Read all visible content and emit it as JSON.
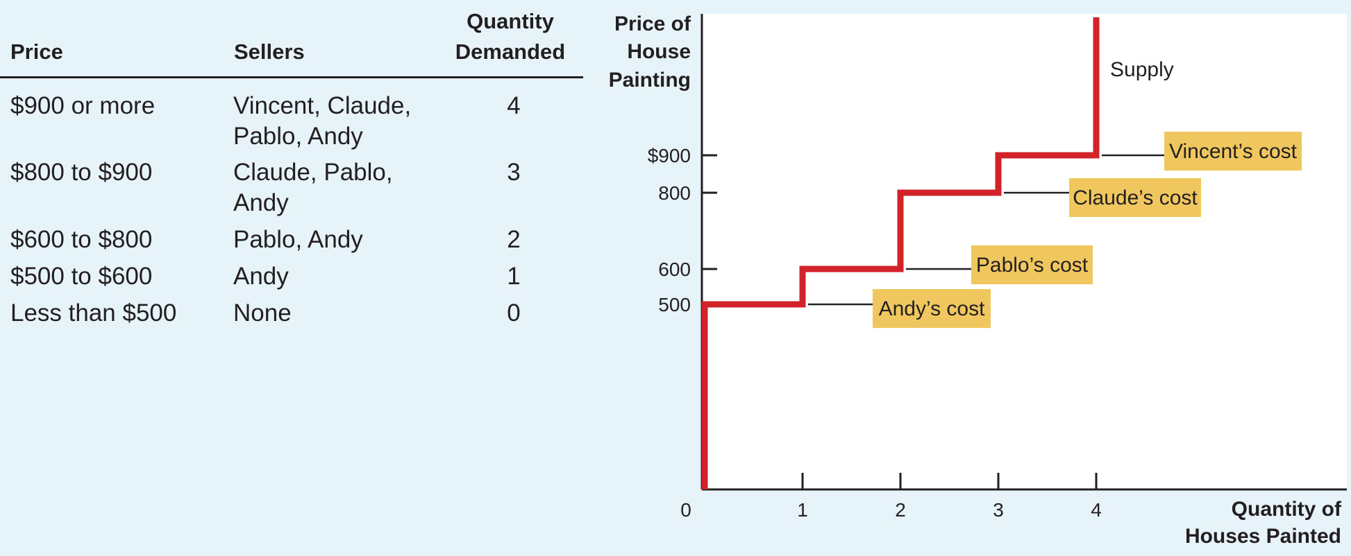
{
  "table": {
    "headers": {
      "price": "Price",
      "sellers": "Sellers",
      "quantity_line1": "Quantity",
      "quantity_line2": "Demanded"
    },
    "rows": [
      {
        "price": "$900 or more",
        "sellers": "Vincent, Claude, Pablo, Andy",
        "quantity": "4"
      },
      {
        "price": "$800 to $900",
        "sellers": "Claude, Pablo, Andy",
        "quantity": "3"
      },
      {
        "price": "$600 to $800",
        "sellers": "Pablo, Andy",
        "quantity": "2"
      },
      {
        "price": "$500 to $600",
        "sellers": "Andy",
        "quantity": "1"
      },
      {
        "price": "Less than $500",
        "sellers": "None",
        "quantity": "0"
      }
    ]
  },
  "chart_data": {
    "type": "line",
    "title": "",
    "ylabel": [
      "Price of",
      "House",
      "Painting"
    ],
    "xlabel": [
      "Quantity of",
      "Houses Painted"
    ],
    "x_ticks": [
      "0",
      "1",
      "2",
      "3",
      "4"
    ],
    "y_ticks": [
      {
        "value": 500,
        "label": "500"
      },
      {
        "value": 600,
        "label": "600"
      },
      {
        "value": 800,
        "label": "800"
      },
      {
        "value": 900,
        "label": "$900"
      }
    ],
    "series": [
      {
        "name": "Supply",
        "step": true,
        "points": [
          [
            0,
            0
          ],
          [
            0,
            500
          ],
          [
            1,
            500
          ],
          [
            1,
            600
          ],
          [
            2,
            600
          ],
          [
            2,
            800
          ],
          [
            3,
            800
          ],
          [
            3,
            900
          ],
          [
            4,
            900
          ],
          [
            4,
            1550
          ]
        ]
      }
    ],
    "annotations": [
      {
        "text": "Andy’s cost",
        "value": 500
      },
      {
        "text": "Pablo’s cost",
        "value": 600
      },
      {
        "text": "Claude’s cost",
        "value": 800
      },
      {
        "text": "Vincent’s cost",
        "value": 900
      }
    ],
    "colors": {
      "supply": "#d2232a",
      "label_box": "#efc75e",
      "plot_bg": "#ffffff",
      "page_bg": "#e6f3f8"
    }
  }
}
